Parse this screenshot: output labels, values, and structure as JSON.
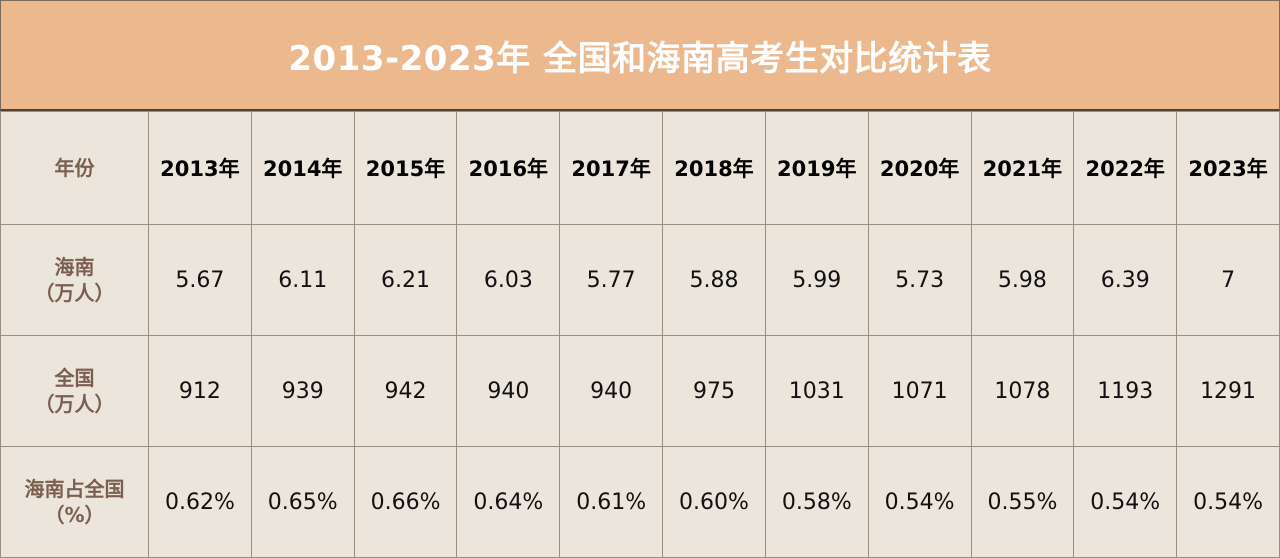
{
  "title": "2013-2023年 全国和海南高考生对比统计表",
  "header": {
    "label": "年份",
    "years": [
      "2013年",
      "2014年",
      "2015年",
      "2016年",
      "2017年",
      "2018年",
      "2019年",
      "2020年",
      "2021年",
      "2022年",
      "2023年"
    ]
  },
  "rows": [
    {
      "label_line1": "海南",
      "label_line2": "（万人）",
      "values": [
        "5.67",
        "6.11",
        "6.21",
        "6.03",
        "5.77",
        "5.88",
        "5.99",
        "5.73",
        "5.98",
        "6.39",
        "7"
      ]
    },
    {
      "label_line1": "全国",
      "label_line2": "（万人）",
      "values": [
        "912",
        "939",
        "942",
        "940",
        "940",
        "975",
        "1031",
        "1071",
        "1078",
        "1193",
        "1291"
      ]
    },
    {
      "label_line1": "海南占全国",
      "label_line2": "（%）",
      "values": [
        "0.62%",
        "0.65%",
        "0.66%",
        "0.64%",
        "0.61%",
        "0.60%",
        "0.58%",
        "0.54%",
        "0.55%",
        "0.54%",
        "0.54%"
      ]
    }
  ],
  "colors": {
    "title_bg": "#ebb98d",
    "body_bg": "#ece5db",
    "label_text": "#7a5f50"
  }
}
